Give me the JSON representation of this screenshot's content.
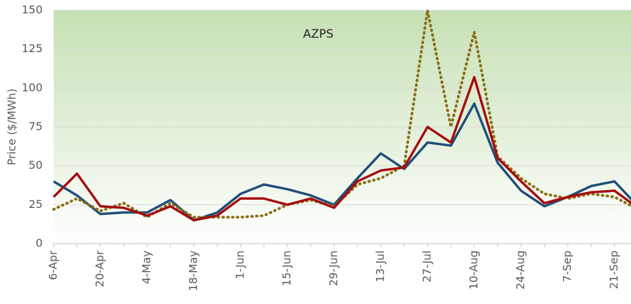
{
  "chart_data": {
    "type": "line",
    "annotation": "AZPS",
    "ylabel": "Price ($/MWh)",
    "categories": [
      "6-Apr",
      null,
      "20-Apr",
      null,
      "4-May",
      null,
      "18-May",
      null,
      "1-Jun",
      null,
      "15-Jun",
      null,
      "29-Jun",
      null,
      "13-Jul",
      null,
      "27-Jul",
      null,
      "10-Aug",
      null,
      "24-Aug",
      null,
      "7-Sep",
      null,
      "21-Sep",
      null
    ],
    "series": [
      {
        "color": "#1f4e79",
        "style": "solid",
        "values": [
          40,
          31,
          19,
          20,
          20,
          28,
          15,
          20,
          32,
          38,
          35,
          31,
          25,
          42,
          58,
          48,
          65,
          63,
          90,
          52,
          34,
          24,
          30,
          37,
          40,
          24
        ]
      },
      {
        "color": "#8b6d14",
        "style": "dotted",
        "values": [
          22,
          29,
          21,
          26,
          17,
          26,
          17,
          17,
          17,
          18,
          25,
          28,
          24,
          38,
          42,
          50,
          150,
          75,
          136,
          56,
          42,
          32,
          29,
          32,
          30,
          22
        ]
      },
      {
        "color": "#a50d0d",
        "style": "solid",
        "values": [
          30,
          45,
          24,
          23,
          18,
          24,
          15,
          18,
          29,
          29,
          25,
          29,
          23,
          40,
          47,
          49,
          75,
          65,
          107,
          55,
          40,
          26,
          30,
          33,
          34,
          23
        ]
      }
    ],
    "ylim": [
      0,
      150
    ],
    "yticks": [
      0,
      25,
      50,
      75,
      100,
      125,
      150
    ],
    "grid": true
  }
}
